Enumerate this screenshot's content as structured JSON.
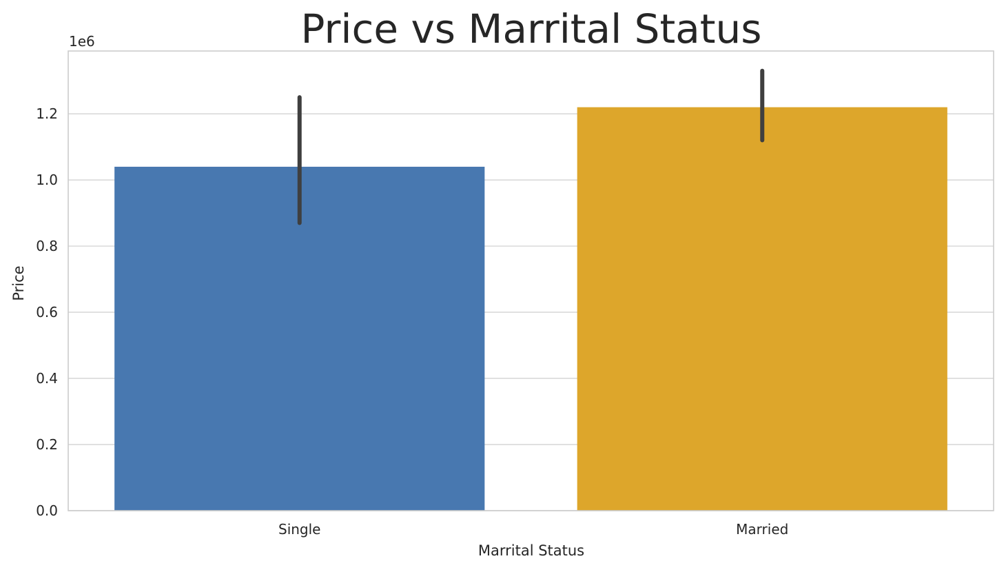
{
  "chart_data": {
    "type": "bar",
    "title": "Price vs Marrital Status",
    "xlabel": "Marrital Status",
    "ylabel": "Price",
    "y_offset_label": "1e6",
    "categories": [
      "Single",
      "Married"
    ],
    "values": [
      1.04,
      1.22
    ],
    "error_low": [
      0.87,
      1.12
    ],
    "error_high": [
      1.25,
      1.33
    ],
    "colors": [
      "#4878b0",
      "#dda62b"
    ],
    "ylim": [
      0,
      1.39
    ],
    "yticks": [
      0.0,
      0.2,
      0.4,
      0.6,
      0.8,
      1.0,
      1.2
    ],
    "ytick_labels": [
      "0.0",
      "0.2",
      "0.4",
      "0.6",
      "0.8",
      "1.0",
      "1.2"
    ],
    "grid": true
  }
}
